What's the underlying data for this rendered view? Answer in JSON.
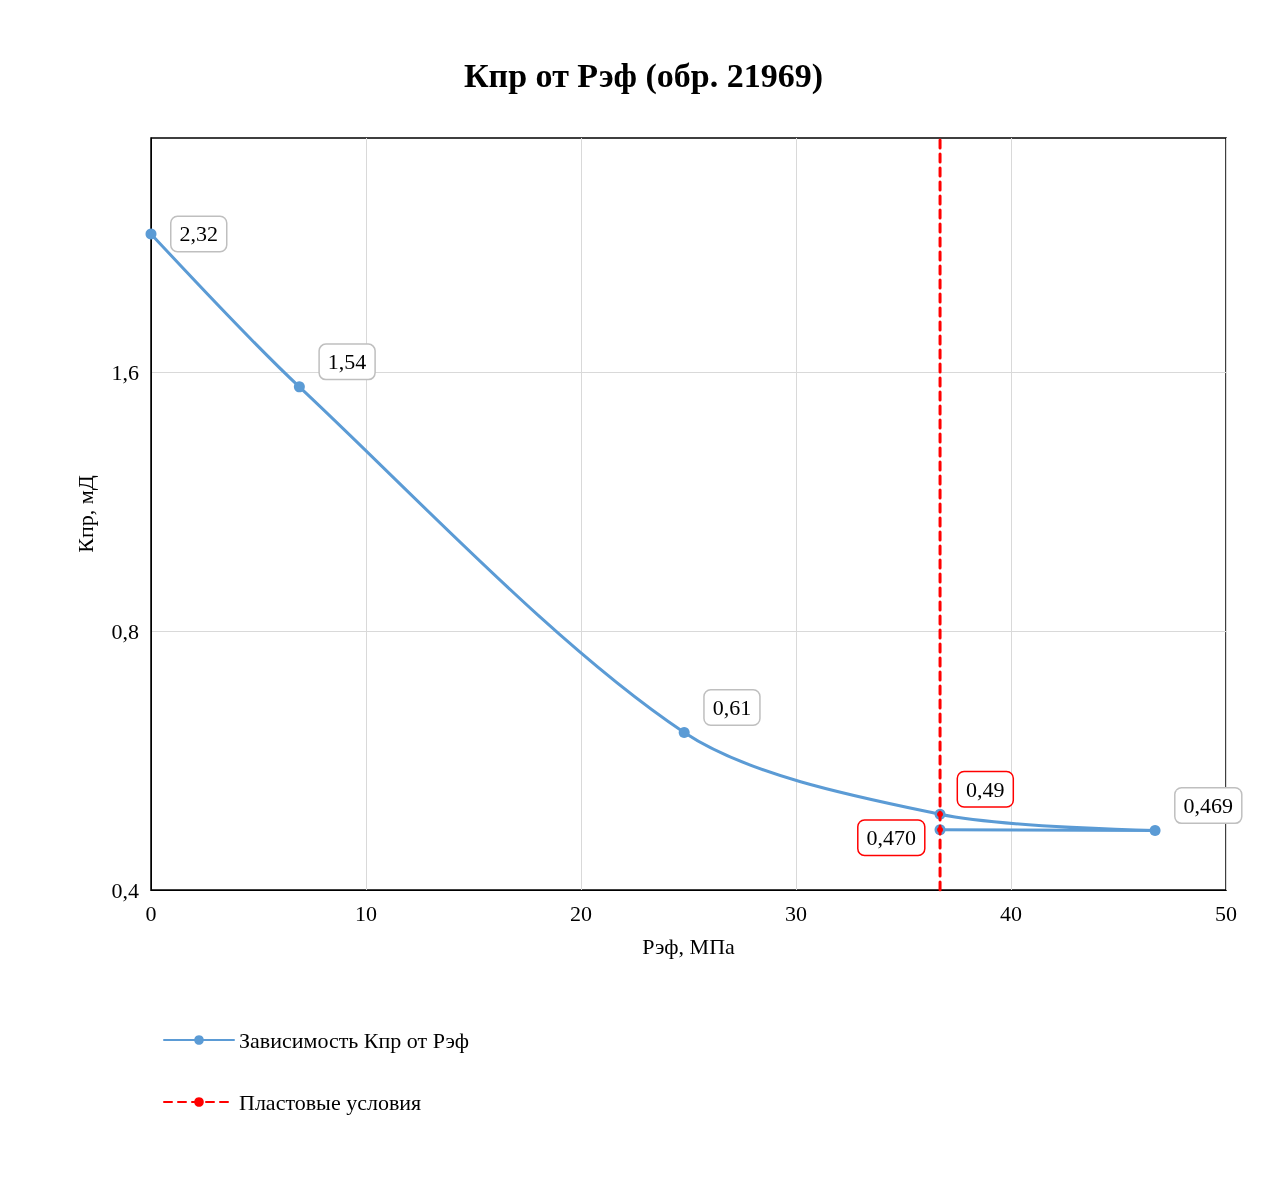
{
  "chart_data": {
    "type": "line",
    "title": "Кпр от Рэф (обр. 21969)",
    "xlabel": "Рэф, МПа",
    "ylabel": "Кпр, мД",
    "log": "y",
    "grid": true,
    "legend": "bottom",
    "marker": "circle",
    "xlim": [
      0,
      50
    ],
    "xticks": [
      0,
      10,
      20,
      30,
      40,
      50
    ],
    "ylim": [
      0.4,
      3.0
    ],
    "yticks": [
      {
        "value": 0.4,
        "label": "0,4"
      },
      {
        "value": 0.8,
        "label": "0,8"
      },
      {
        "value": 1.6,
        "label": "1,6"
      }
    ],
    "series": [
      {
        "name": "Зависимость Кпр от Рэф",
        "color": "#5b9bd5",
        "line_style": "solid",
        "x": [
          0,
          6.9,
          24.8,
          36.7,
          46.7,
          36.7
        ],
        "values": [
          2.32,
          1.54,
          0.61,
          0.49,
          0.469,
          0.47
        ],
        "value_labels": [
          "2,32",
          "1,54",
          "0,61",
          null,
          "0,469",
          null
        ]
      },
      {
        "name": "Пластовые условия",
        "color": "#ff0000",
        "line_style": "dashed",
        "x": [
          36.7,
          36.7,
          36.7,
          36.7
        ],
        "values": [
          0.4,
          0.47,
          0.49,
          3.0
        ],
        "value_labels": [
          null,
          "0,470",
          "0,49",
          null
        ]
      }
    ]
  }
}
